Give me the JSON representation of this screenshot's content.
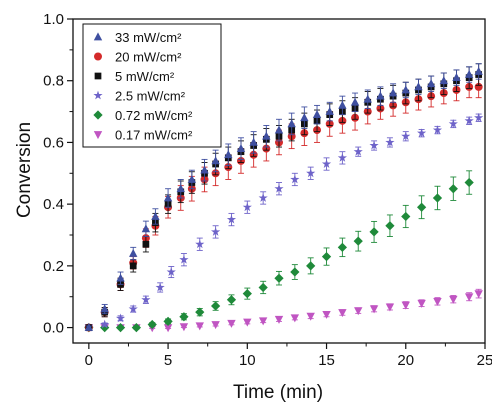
{
  "chart_data": {
    "type": "scatter",
    "xlabel": "Time (min)",
    "ylabel": "Conversion",
    "xlim": [
      -1,
      25
    ],
    "ylim": [
      -0.05,
      1.0
    ],
    "xticks": [
      0,
      5,
      10,
      15,
      20,
      25
    ],
    "yticks": [
      0.0,
      0.2,
      0.4,
      0.6,
      0.8,
      1.0
    ],
    "xtick_labels": [
      "0",
      "5",
      "10",
      "15",
      "20",
      "25"
    ],
    "ytick_labels": [
      "0.0",
      "0.2",
      "0.4",
      "0.6",
      "0.8",
      "1.0"
    ],
    "grid": false,
    "legend_position": "top-left",
    "series": [
      {
        "name": "33   mW/cm²",
        "marker": "triangle-up",
        "color": "#3f4fa0",
        "x": [
          0,
          1,
          2,
          2.8,
          3.6,
          4.2,
          5,
          5.8,
          6.5,
          7.3,
          8,
          8.8,
          9.6,
          10.4,
          11.2,
          12,
          12.8,
          13.6,
          14.4,
          15.2,
          16,
          16.8,
          17.6,
          18.4,
          19.2,
          20,
          20.8,
          21.6,
          22.4,
          23.2,
          24,
          24.6
        ],
        "y": [
          0,
          0.06,
          0.16,
          0.24,
          0.32,
          0.36,
          0.42,
          0.45,
          0.48,
          0.51,
          0.54,
          0.56,
          0.58,
          0.6,
          0.62,
          0.64,
          0.66,
          0.68,
          0.69,
          0.7,
          0.72,
          0.73,
          0.74,
          0.75,
          0.76,
          0.77,
          0.78,
          0.79,
          0.8,
          0.81,
          0.82,
          0.83
        ],
        "err": [
          0.005,
          0.015,
          0.02,
          0.02,
          0.025,
          0.025,
          0.03,
          0.03,
          0.03,
          0.035,
          0.035,
          0.035,
          0.035,
          0.035,
          0.035,
          0.035,
          0.035,
          0.035,
          0.03,
          0.03,
          0.03,
          0.03,
          0.03,
          0.03,
          0.03,
          0.025,
          0.025,
          0.025,
          0.025,
          0.025,
          0.025,
          0.025
        ]
      },
      {
        "name": "20   mW/cm²",
        "marker": "circle",
        "color": "#d42a2a",
        "x": [
          0,
          1,
          2,
          2.8,
          3.6,
          4.2,
          5,
          5.8,
          6.5,
          7.3,
          8,
          8.8,
          9.6,
          10.4,
          11.2,
          12,
          12.8,
          13.6,
          14.4,
          15.2,
          16,
          16.8,
          17.6,
          18.4,
          19.2,
          20,
          20.8,
          21.6,
          22.4,
          23.2,
          24,
          24.6
        ],
        "y": [
          0,
          0.05,
          0.14,
          0.21,
          0.29,
          0.33,
          0.39,
          0.42,
          0.45,
          0.48,
          0.5,
          0.52,
          0.54,
          0.56,
          0.58,
          0.6,
          0.62,
          0.63,
          0.64,
          0.66,
          0.67,
          0.68,
          0.7,
          0.71,
          0.72,
          0.73,
          0.74,
          0.75,
          0.76,
          0.77,
          0.78,
          0.78
        ],
        "err": [
          0.005,
          0.015,
          0.02,
          0.02,
          0.03,
          0.03,
          0.035,
          0.04,
          0.04,
          0.04,
          0.04,
          0.04,
          0.04,
          0.04,
          0.04,
          0.04,
          0.04,
          0.04,
          0.04,
          0.04,
          0.04,
          0.04,
          0.04,
          0.035,
          0.035,
          0.035,
          0.035,
          0.035,
          0.035,
          0.035,
          0.035,
          0.035
        ]
      },
      {
        "name": "5     mW/cm²",
        "marker": "square",
        "color": "#111111",
        "x": [
          0,
          1,
          2,
          2.8,
          3.6,
          4.2,
          5,
          5.8,
          6.5,
          7.3,
          8,
          8.8,
          9.6,
          10.4,
          11.2,
          12,
          12.8,
          13.6,
          14.4,
          15.2,
          16,
          16.8,
          17.6,
          18.4,
          19.2,
          20,
          20.8,
          21.6,
          22.4,
          23.2,
          24,
          24.6
        ],
        "y": [
          0,
          0.05,
          0.14,
          0.2,
          0.27,
          0.34,
          0.4,
          0.44,
          0.47,
          0.5,
          0.53,
          0.55,
          0.57,
          0.59,
          0.61,
          0.62,
          0.64,
          0.66,
          0.67,
          0.69,
          0.7,
          0.71,
          0.73,
          0.74,
          0.75,
          0.76,
          0.77,
          0.78,
          0.79,
          0.8,
          0.81,
          0.82
        ],
        "err": [
          0.005,
          0.015,
          0.02,
          0.02,
          0.025,
          0.03,
          0.03,
          0.035,
          0.035,
          0.035,
          0.035,
          0.035,
          0.035,
          0.035,
          0.035,
          0.035,
          0.035,
          0.035,
          0.035,
          0.035,
          0.035,
          0.035,
          0.035,
          0.035,
          0.035,
          0.035,
          0.035,
          0.035,
          0.035,
          0.035,
          0.035,
          0.035
        ]
      },
      {
        "name": "2.5  mW/cm²",
        "marker": "star",
        "color": "#6e63c9",
        "x": [
          0,
          1,
          2,
          2.8,
          3.6,
          4.5,
          5.2,
          6,
          7,
          8,
          9,
          10,
          11,
          12,
          13,
          14,
          15,
          16,
          17,
          18,
          19,
          20,
          21,
          22,
          23,
          24,
          24.6
        ],
        "y": [
          0,
          0.01,
          0.03,
          0.06,
          0.09,
          0.13,
          0.18,
          0.22,
          0.27,
          0.31,
          0.35,
          0.39,
          0.42,
          0.45,
          0.48,
          0.5,
          0.53,
          0.55,
          0.57,
          0.59,
          0.6,
          0.62,
          0.63,
          0.64,
          0.66,
          0.67,
          0.68
        ],
        "err": [
          0.005,
          0.005,
          0.008,
          0.01,
          0.012,
          0.015,
          0.018,
          0.02,
          0.02,
          0.02,
          0.02,
          0.02,
          0.02,
          0.02,
          0.02,
          0.02,
          0.02,
          0.02,
          0.015,
          0.015,
          0.015,
          0.015,
          0.012,
          0.012,
          0.012,
          0.012,
          0.012
        ]
      },
      {
        "name": "0.72 mW/cm²",
        "marker": "diamond",
        "color": "#1f8a3a",
        "x": [
          0,
          1,
          2,
          3,
          4,
          5,
          6,
          7,
          8,
          9,
          10,
          11,
          12,
          13,
          14,
          15,
          16,
          17,
          18,
          19,
          20,
          21,
          22,
          23,
          24
        ],
        "y": [
          0,
          0.0,
          0.0,
          0.0,
          0.01,
          0.02,
          0.035,
          0.05,
          0.07,
          0.09,
          0.11,
          0.13,
          0.16,
          0.18,
          0.2,
          0.23,
          0.26,
          0.28,
          0.31,
          0.33,
          0.36,
          0.39,
          0.42,
          0.45,
          0.47
        ],
        "err": [
          0.003,
          0.003,
          0.003,
          0.005,
          0.006,
          0.008,
          0.01,
          0.012,
          0.014,
          0.016,
          0.018,
          0.02,
          0.022,
          0.024,
          0.026,
          0.028,
          0.03,
          0.032,
          0.034,
          0.035,
          0.036,
          0.037,
          0.038,
          0.038,
          0.038
        ]
      },
      {
        "name": "0.17 mW/cm²",
        "marker": "triangle-down",
        "color": "#c055c2",
        "x": [
          0,
          1,
          2,
          3,
          4,
          5,
          6,
          7,
          8,
          9,
          10,
          11,
          12,
          13,
          14,
          15,
          16,
          17,
          18,
          19,
          20,
          21,
          22,
          23,
          24,
          24.6
        ],
        "y": [
          0,
          0.0,
          0.0,
          0.0,
          0.0,
          0.0,
          0.003,
          0.006,
          0.01,
          0.014,
          0.018,
          0.022,
          0.027,
          0.032,
          0.037,
          0.043,
          0.049,
          0.055,
          0.061,
          0.067,
          0.073,
          0.079,
          0.085,
          0.092,
          0.1,
          0.11
        ],
        "err": [
          0.003,
          0.003,
          0.003,
          0.003,
          0.003,
          0.003,
          0.003,
          0.004,
          0.005,
          0.005,
          0.006,
          0.006,
          0.007,
          0.007,
          0.008,
          0.008,
          0.009,
          0.009,
          0.01,
          0.01,
          0.011,
          0.011,
          0.012,
          0.012,
          0.013,
          0.014
        ]
      }
    ]
  }
}
